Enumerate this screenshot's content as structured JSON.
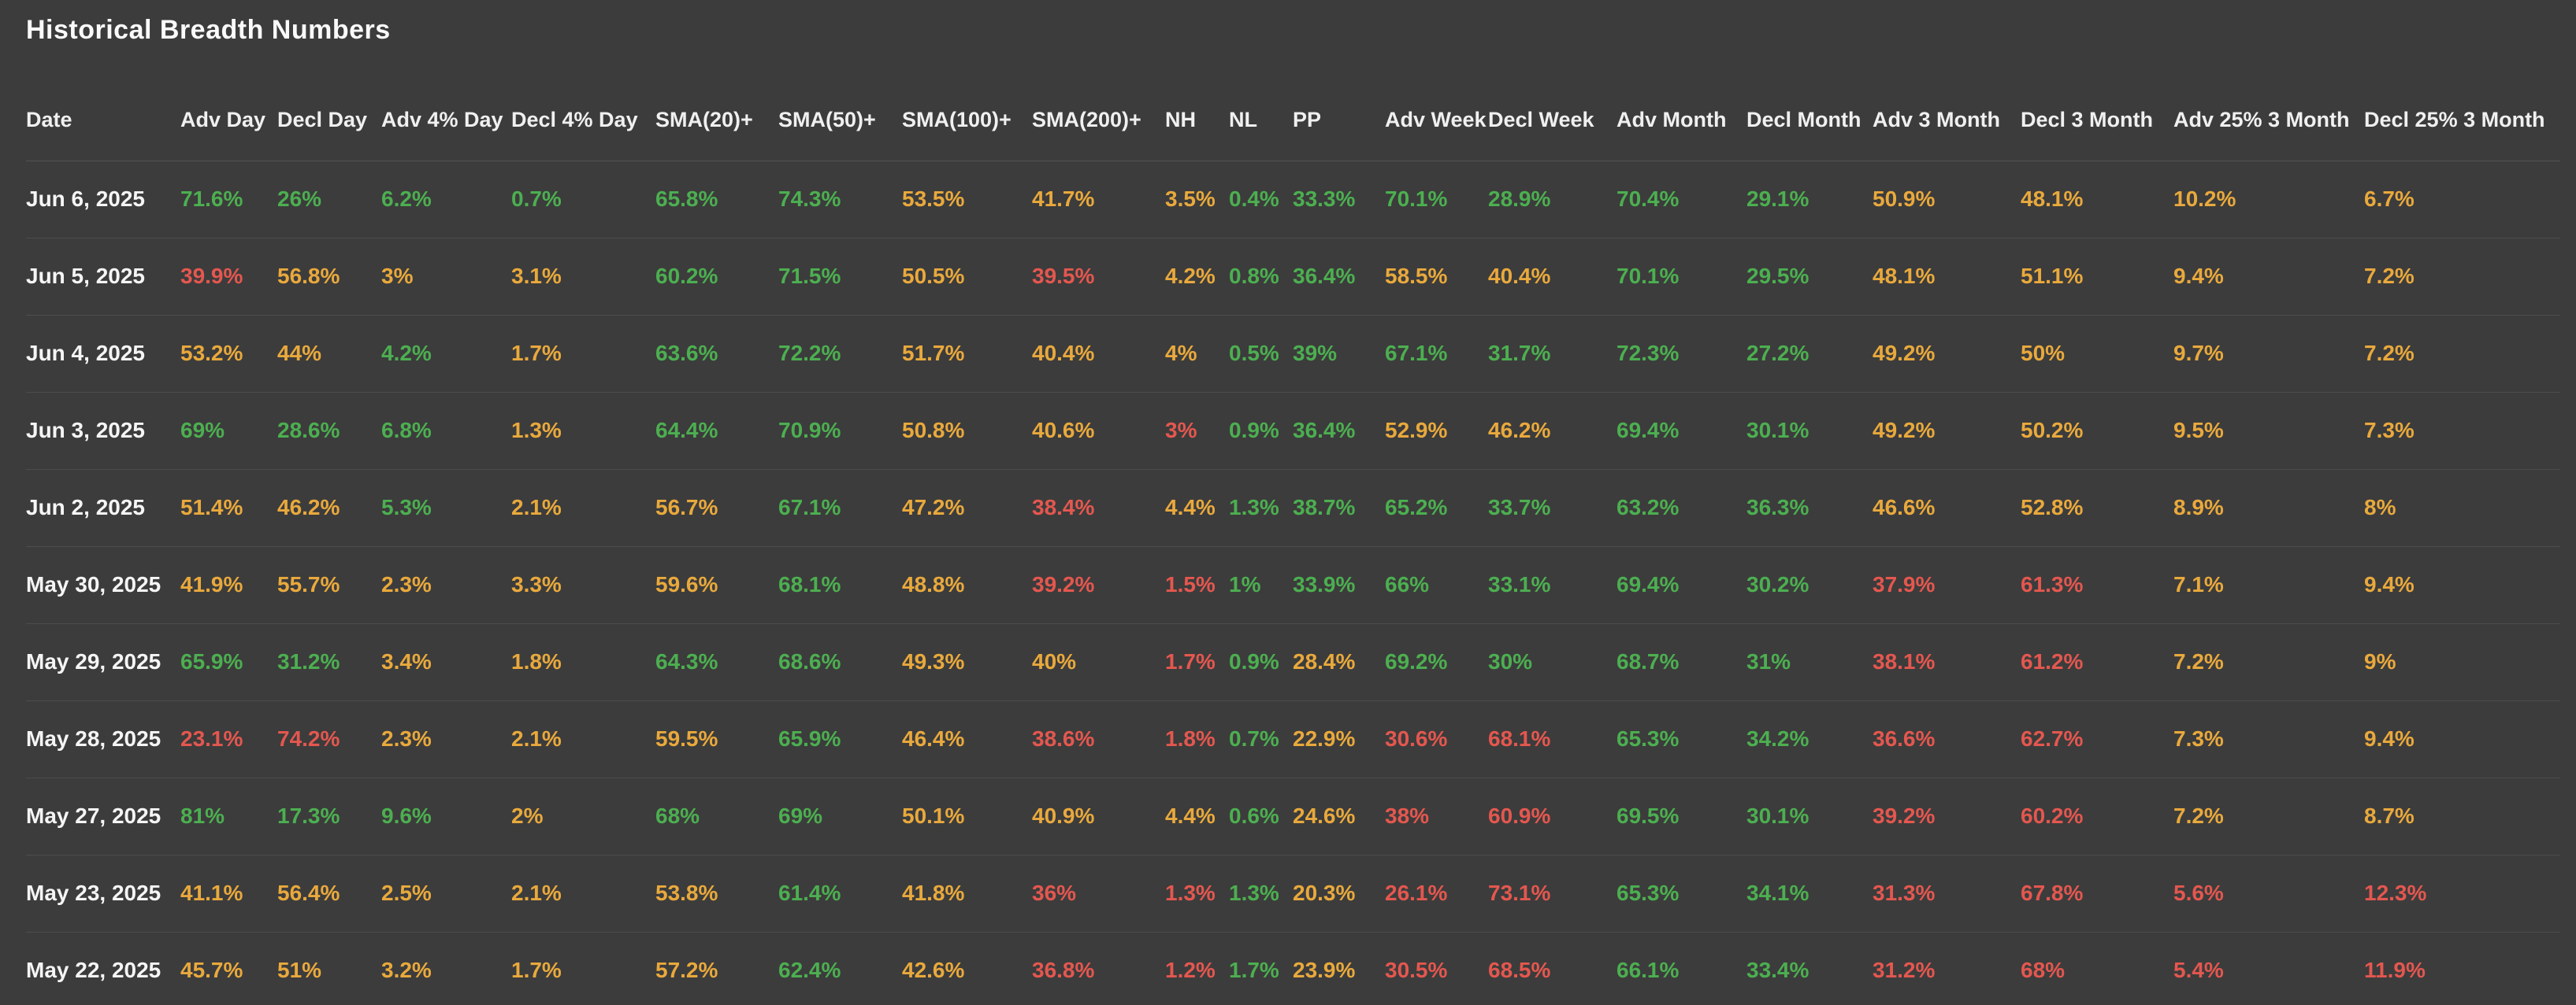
{
  "title": "Historical Breadth Numbers",
  "colors": {
    "g": "#4caf50",
    "y": "#e9a93c",
    "r": "#e4574f",
    "date_text": "#f5f5f5",
    "header_text": "#f0f0f0",
    "background": "#3c3c3c"
  },
  "table": {
    "columns": [
      "Date",
      "Adv Day",
      "Decl Day",
      "Adv 4% Day",
      "Decl 4% Day",
      "SMA(20)+",
      "SMA(50)+",
      "SMA(100)+",
      "SMA(200)+",
      "NH",
      "NL",
      "PP",
      "Adv Week",
      "Decl Week",
      "Adv Month",
      "Decl Month",
      "Adv 3 Month",
      "Decl 3 Month",
      "Adv 25% 3 Month",
      "Decl 25% 3 Month"
    ],
    "rows": [
      {
        "date": "Jun 6, 2025",
        "cells": [
          [
            "71.6%",
            "g"
          ],
          [
            "26%",
            "g"
          ],
          [
            "6.2%",
            "g"
          ],
          [
            "0.7%",
            "g"
          ],
          [
            "65.8%",
            "g"
          ],
          [
            "74.3%",
            "g"
          ],
          [
            "53.5%",
            "y"
          ],
          [
            "41.7%",
            "y"
          ],
          [
            "3.5%",
            "y"
          ],
          [
            "0.4%",
            "g"
          ],
          [
            "33.3%",
            "g"
          ],
          [
            "70.1%",
            "g"
          ],
          [
            "28.9%",
            "g"
          ],
          [
            "70.4%",
            "g"
          ],
          [
            "29.1%",
            "g"
          ],
          [
            "50.9%",
            "y"
          ],
          [
            "48.1%",
            "y"
          ],
          [
            "10.2%",
            "y"
          ],
          [
            "6.7%",
            "y"
          ]
        ]
      },
      {
        "date": "Jun 5, 2025",
        "cells": [
          [
            "39.9%",
            "r"
          ],
          [
            "56.8%",
            "y"
          ],
          [
            "3%",
            "y"
          ],
          [
            "3.1%",
            "y"
          ],
          [
            "60.2%",
            "g"
          ],
          [
            "71.5%",
            "g"
          ],
          [
            "50.5%",
            "y"
          ],
          [
            "39.5%",
            "r"
          ],
          [
            "4.2%",
            "y"
          ],
          [
            "0.8%",
            "g"
          ],
          [
            "36.4%",
            "g"
          ],
          [
            "58.5%",
            "y"
          ],
          [
            "40.4%",
            "y"
          ],
          [
            "70.1%",
            "g"
          ],
          [
            "29.5%",
            "g"
          ],
          [
            "48.1%",
            "y"
          ],
          [
            "51.1%",
            "y"
          ],
          [
            "9.4%",
            "y"
          ],
          [
            "7.2%",
            "y"
          ]
        ]
      },
      {
        "date": "Jun 4, 2025",
        "cells": [
          [
            "53.2%",
            "y"
          ],
          [
            "44%",
            "y"
          ],
          [
            "4.2%",
            "g"
          ],
          [
            "1.7%",
            "y"
          ],
          [
            "63.6%",
            "g"
          ],
          [
            "72.2%",
            "g"
          ],
          [
            "51.7%",
            "y"
          ],
          [
            "40.4%",
            "y"
          ],
          [
            "4%",
            "y"
          ],
          [
            "0.5%",
            "g"
          ],
          [
            "39%",
            "g"
          ],
          [
            "67.1%",
            "g"
          ],
          [
            "31.7%",
            "g"
          ],
          [
            "72.3%",
            "g"
          ],
          [
            "27.2%",
            "g"
          ],
          [
            "49.2%",
            "y"
          ],
          [
            "50%",
            "y"
          ],
          [
            "9.7%",
            "y"
          ],
          [
            "7.2%",
            "y"
          ]
        ]
      },
      {
        "date": "Jun 3, 2025",
        "cells": [
          [
            "69%",
            "g"
          ],
          [
            "28.6%",
            "g"
          ],
          [
            "6.8%",
            "g"
          ],
          [
            "1.3%",
            "y"
          ],
          [
            "64.4%",
            "g"
          ],
          [
            "70.9%",
            "g"
          ],
          [
            "50.8%",
            "y"
          ],
          [
            "40.6%",
            "y"
          ],
          [
            "3%",
            "r"
          ],
          [
            "0.9%",
            "g"
          ],
          [
            "36.4%",
            "g"
          ],
          [
            "52.9%",
            "y"
          ],
          [
            "46.2%",
            "y"
          ],
          [
            "69.4%",
            "g"
          ],
          [
            "30.1%",
            "g"
          ],
          [
            "49.2%",
            "y"
          ],
          [
            "50.2%",
            "y"
          ],
          [
            "9.5%",
            "y"
          ],
          [
            "7.3%",
            "y"
          ]
        ]
      },
      {
        "date": "Jun 2, 2025",
        "cells": [
          [
            "51.4%",
            "y"
          ],
          [
            "46.2%",
            "y"
          ],
          [
            "5.3%",
            "g"
          ],
          [
            "2.1%",
            "y"
          ],
          [
            "56.7%",
            "y"
          ],
          [
            "67.1%",
            "g"
          ],
          [
            "47.2%",
            "y"
          ],
          [
            "38.4%",
            "r"
          ],
          [
            "4.4%",
            "y"
          ],
          [
            "1.3%",
            "g"
          ],
          [
            "38.7%",
            "g"
          ],
          [
            "65.2%",
            "g"
          ],
          [
            "33.7%",
            "g"
          ],
          [
            "63.2%",
            "g"
          ],
          [
            "36.3%",
            "g"
          ],
          [
            "46.6%",
            "y"
          ],
          [
            "52.8%",
            "y"
          ],
          [
            "8.9%",
            "y"
          ],
          [
            "8%",
            "y"
          ]
        ]
      },
      {
        "date": "May 30, 2025",
        "cells": [
          [
            "41.9%",
            "y"
          ],
          [
            "55.7%",
            "y"
          ],
          [
            "2.3%",
            "y"
          ],
          [
            "3.3%",
            "y"
          ],
          [
            "59.6%",
            "y"
          ],
          [
            "68.1%",
            "g"
          ],
          [
            "48.8%",
            "y"
          ],
          [
            "39.2%",
            "r"
          ],
          [
            "1.5%",
            "r"
          ],
          [
            "1%",
            "g"
          ],
          [
            "33.9%",
            "g"
          ],
          [
            "66%",
            "g"
          ],
          [
            "33.1%",
            "g"
          ],
          [
            "69.4%",
            "g"
          ],
          [
            "30.2%",
            "g"
          ],
          [
            "37.9%",
            "r"
          ],
          [
            "61.3%",
            "r"
          ],
          [
            "7.1%",
            "y"
          ],
          [
            "9.4%",
            "y"
          ]
        ]
      },
      {
        "date": "May 29, 2025",
        "cells": [
          [
            "65.9%",
            "g"
          ],
          [
            "31.2%",
            "g"
          ],
          [
            "3.4%",
            "y"
          ],
          [
            "1.8%",
            "y"
          ],
          [
            "64.3%",
            "g"
          ],
          [
            "68.6%",
            "g"
          ],
          [
            "49.3%",
            "y"
          ],
          [
            "40%",
            "y"
          ],
          [
            "1.7%",
            "r"
          ],
          [
            "0.9%",
            "g"
          ],
          [
            "28.4%",
            "y"
          ],
          [
            "69.2%",
            "g"
          ],
          [
            "30%",
            "g"
          ],
          [
            "68.7%",
            "g"
          ],
          [
            "31%",
            "g"
          ],
          [
            "38.1%",
            "r"
          ],
          [
            "61.2%",
            "r"
          ],
          [
            "7.2%",
            "y"
          ],
          [
            "9%",
            "y"
          ]
        ]
      },
      {
        "date": "May 28, 2025",
        "cells": [
          [
            "23.1%",
            "r"
          ],
          [
            "74.2%",
            "r"
          ],
          [
            "2.3%",
            "y"
          ],
          [
            "2.1%",
            "y"
          ],
          [
            "59.5%",
            "y"
          ],
          [
            "65.9%",
            "g"
          ],
          [
            "46.4%",
            "y"
          ],
          [
            "38.6%",
            "r"
          ],
          [
            "1.8%",
            "r"
          ],
          [
            "0.7%",
            "g"
          ],
          [
            "22.9%",
            "y"
          ],
          [
            "30.6%",
            "r"
          ],
          [
            "68.1%",
            "r"
          ],
          [
            "65.3%",
            "g"
          ],
          [
            "34.2%",
            "g"
          ],
          [
            "36.6%",
            "r"
          ],
          [
            "62.7%",
            "r"
          ],
          [
            "7.3%",
            "y"
          ],
          [
            "9.4%",
            "y"
          ]
        ]
      },
      {
        "date": "May 27, 2025",
        "cells": [
          [
            "81%",
            "g"
          ],
          [
            "17.3%",
            "g"
          ],
          [
            "9.6%",
            "g"
          ],
          [
            "2%",
            "y"
          ],
          [
            "68%",
            "g"
          ],
          [
            "69%",
            "g"
          ],
          [
            "50.1%",
            "y"
          ],
          [
            "40.9%",
            "y"
          ],
          [
            "4.4%",
            "y"
          ],
          [
            "0.6%",
            "g"
          ],
          [
            "24.6%",
            "y"
          ],
          [
            "38%",
            "r"
          ],
          [
            "60.9%",
            "r"
          ],
          [
            "69.5%",
            "g"
          ],
          [
            "30.1%",
            "g"
          ],
          [
            "39.2%",
            "r"
          ],
          [
            "60.2%",
            "r"
          ],
          [
            "7.2%",
            "y"
          ],
          [
            "8.7%",
            "y"
          ]
        ]
      },
      {
        "date": "May 23, 2025",
        "cells": [
          [
            "41.1%",
            "y"
          ],
          [
            "56.4%",
            "y"
          ],
          [
            "2.5%",
            "y"
          ],
          [
            "2.1%",
            "y"
          ],
          [
            "53.8%",
            "y"
          ],
          [
            "61.4%",
            "g"
          ],
          [
            "41.8%",
            "y"
          ],
          [
            "36%",
            "r"
          ],
          [
            "1.3%",
            "r"
          ],
          [
            "1.3%",
            "g"
          ],
          [
            "20.3%",
            "y"
          ],
          [
            "26.1%",
            "r"
          ],
          [
            "73.1%",
            "r"
          ],
          [
            "65.3%",
            "g"
          ],
          [
            "34.1%",
            "g"
          ],
          [
            "31.3%",
            "r"
          ],
          [
            "67.8%",
            "r"
          ],
          [
            "5.6%",
            "r"
          ],
          [
            "12.3%",
            "r"
          ]
        ]
      },
      {
        "date": "May 22, 2025",
        "cells": [
          [
            "45.7%",
            "y"
          ],
          [
            "51%",
            "y"
          ],
          [
            "3.2%",
            "y"
          ],
          [
            "1.7%",
            "y"
          ],
          [
            "57.2%",
            "y"
          ],
          [
            "62.4%",
            "g"
          ],
          [
            "42.6%",
            "y"
          ],
          [
            "36.8%",
            "r"
          ],
          [
            "1.2%",
            "r"
          ],
          [
            "1.7%",
            "g"
          ],
          [
            "23.9%",
            "y"
          ],
          [
            "30.5%",
            "r"
          ],
          [
            "68.5%",
            "r"
          ],
          [
            "66.1%",
            "g"
          ],
          [
            "33.4%",
            "g"
          ],
          [
            "31.2%",
            "r"
          ],
          [
            "68%",
            "r"
          ],
          [
            "5.4%",
            "r"
          ],
          [
            "11.9%",
            "r"
          ]
        ]
      }
    ]
  }
}
